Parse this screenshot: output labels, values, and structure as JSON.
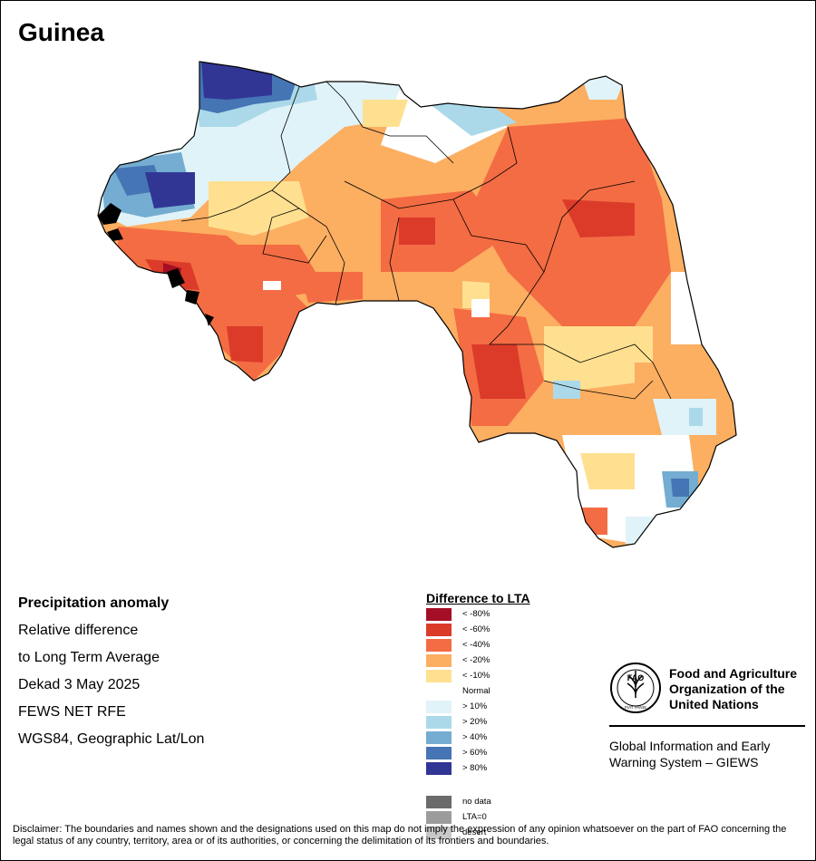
{
  "map_title": "Guinea",
  "info": {
    "heading": "Precipitation anomaly",
    "line1": "Relative difference",
    "line2": "to Long Term Average",
    "period": "Dekad 3 May 2025",
    "source": "FEWS NET RFE",
    "projection": "WGS84, Geographic Lat/Lon"
  },
  "legend": {
    "title": "Difference to LTA",
    "classes": [
      {
        "label": "< -80%",
        "color": "#a50f26"
      },
      {
        "label": "< -60%",
        "color": "#dc3b2a"
      },
      {
        "label": "< -40%",
        "color": "#f46c43"
      },
      {
        "label": "< -20%",
        "color": "#fcae61"
      },
      {
        "label": "< -10%",
        "color": "#fee090"
      },
      {
        "label": "Normal",
        "color": "#ffffff"
      },
      {
        "label": "> 10%",
        "color": "#e0f3f8"
      },
      {
        "label": "> 20%",
        "color": "#abd9e9"
      },
      {
        "label": "> 40%",
        "color": "#74add1"
      },
      {
        "label": "> 60%",
        "color": "#4575b4"
      },
      {
        "label": "> 80%",
        "color": "#313695"
      }
    ],
    "extra": [
      {
        "label": "no data",
        "color": "#6b6b6b"
      },
      {
        "label": "LTA=0",
        "color": "#9c9c9c"
      },
      {
        "label": "desert",
        "color": "#c8c8c8"
      }
    ]
  },
  "org": {
    "logo_text": "FAO",
    "logo_motto": "FIAT PANIS",
    "name": "Food and Agriculture Organization of the United Nations",
    "system": "Global Information and Early Warning System – GIEWS"
  },
  "disclaimer": "Disclaimer: The boundaries and names shown and the designations used on this map do not imply the expression of any opinion whatsoever on the part of FAO concerning the legal status of any country, territory, area or of its authorities, or concerning the delimitation of its frontiers and boundaries."
}
